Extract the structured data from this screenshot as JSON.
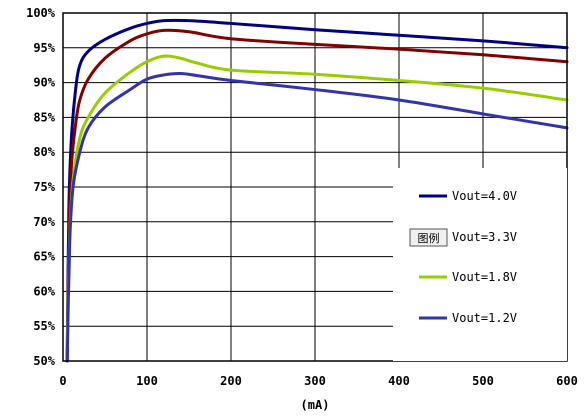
{
  "chart_data": {
    "type": "line",
    "xlabel": "(mA)",
    "ylabel": "",
    "xlim": [
      0,
      600
    ],
    "ylim": [
      50,
      100
    ],
    "x_ticks": [
      "0",
      "100",
      "200",
      "300",
      "400",
      "500",
      "600"
    ],
    "y_ticks": [
      "50%",
      "55%",
      "60%",
      "65%",
      "70%",
      "75%",
      "80%",
      "85%",
      "90%",
      "95%",
      "100%"
    ],
    "grid": true,
    "legend_position": "right",
    "legend_tag": "图例",
    "series": [
      {
        "name": "Vout=4.0V",
        "color": "#000080",
        "points": [
          [
            5,
            50
          ],
          [
            7,
            72
          ],
          [
            10,
            82
          ],
          [
            15,
            89
          ],
          [
            20,
            92.5
          ],
          [
            30,
            94.5
          ],
          [
            50,
            96.2
          ],
          [
            80,
            97.8
          ],
          [
            100,
            98.5
          ],
          [
            120,
            98.9
          ],
          [
            150,
            98.9
          ],
          [
            200,
            98.5
          ],
          [
            300,
            97.6
          ],
          [
            400,
            96.8
          ],
          [
            500,
            96
          ],
          [
            600,
            95
          ]
        ]
      },
      {
        "name": "Vout=3.3V",
        "color": "#800000",
        "points": [
          [
            5,
            50
          ],
          [
            7,
            68
          ],
          [
            10,
            78
          ],
          [
            15,
            84
          ],
          [
            20,
            87.5
          ],
          [
            30,
            90.5
          ],
          [
            50,
            93.5
          ],
          [
            80,
            96
          ],
          [
            100,
            97
          ],
          [
            120,
            97.5
          ],
          [
            150,
            97.3
          ],
          [
            200,
            96.3
          ],
          [
            300,
            95.5
          ],
          [
            400,
            94.8
          ],
          [
            500,
            94
          ],
          [
            600,
            93
          ]
        ]
      },
      {
        "name": "Vout=1.8V",
        "color": "#99cc00",
        "points": [
          [
            5,
            52
          ],
          [
            8,
            68
          ],
          [
            12,
            76
          ],
          [
            20,
            82
          ],
          [
            30,
            85
          ],
          [
            50,
            88.5
          ],
          [
            80,
            91.5
          ],
          [
            100,
            93
          ],
          [
            120,
            93.8
          ],
          [
            140,
            93.5
          ],
          [
            160,
            92.8
          ],
          [
            200,
            91.8
          ],
          [
            300,
            91.2
          ],
          [
            400,
            90.3
          ],
          [
            500,
            89.2
          ],
          [
            600,
            87.5
          ]
        ]
      },
      {
        "name": "Vout=1.2V",
        "color": "#3333aa",
        "points": [
          [
            5,
            50
          ],
          [
            8,
            67
          ],
          [
            12,
            75
          ],
          [
            20,
            80
          ],
          [
            30,
            83.5
          ],
          [
            50,
            86.5
          ],
          [
            80,
            89
          ],
          [
            100,
            90.5
          ],
          [
            120,
            91.1
          ],
          [
            140,
            91.3
          ],
          [
            160,
            91
          ],
          [
            200,
            90.3
          ],
          [
            300,
            89
          ],
          [
            400,
            87.5
          ],
          [
            500,
            85.5
          ],
          [
            600,
            83.5
          ]
        ]
      }
    ]
  }
}
